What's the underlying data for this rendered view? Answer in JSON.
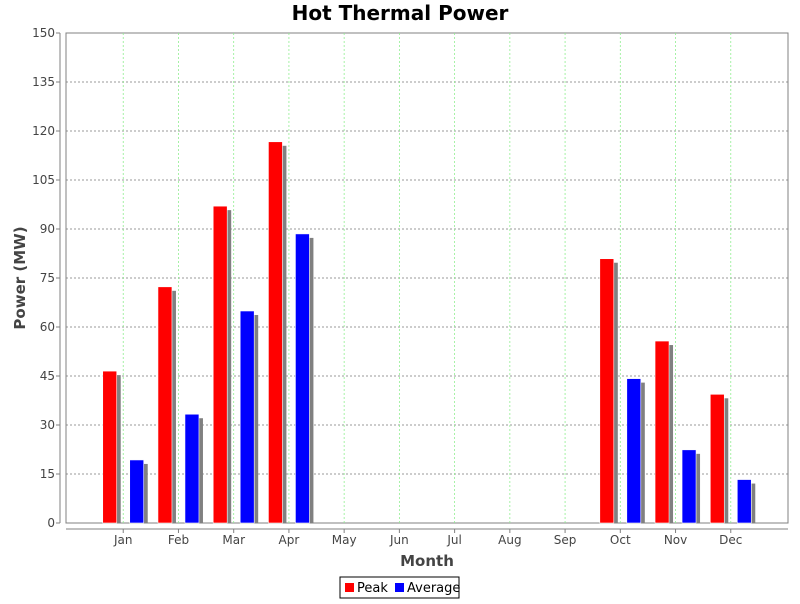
{
  "chart_data": {
    "type": "bar",
    "title": "Hot Thermal Power",
    "xlabel": "Month",
    "ylabel": "Power (MW)",
    "ylim": [
      0,
      150
    ],
    "yticks": [
      0,
      15,
      30,
      45,
      60,
      75,
      90,
      105,
      120,
      135,
      150
    ],
    "categories": [
      "Jan",
      "Feb",
      "Mar",
      "Apr",
      "May",
      "Jun",
      "Jul",
      "Aug",
      "Sep",
      "Oct",
      "Nov",
      "Dec"
    ],
    "series": [
      {
        "name": "Peak",
        "color": "#ff0000",
        "values": [
          46.5,
          72.3,
          97.0,
          116.7,
          null,
          null,
          null,
          null,
          null,
          80.9,
          55.7,
          39.4
        ]
      },
      {
        "name": "Average",
        "color": "#0000ff",
        "values": [
          19.3,
          33.3,
          64.9,
          88.5,
          null,
          null,
          null,
          null,
          null,
          44.2,
          22.4,
          13.3
        ]
      }
    ],
    "grid": true,
    "legend": "bottom-center"
  }
}
